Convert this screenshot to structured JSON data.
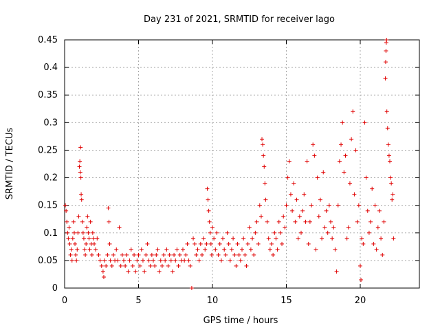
{
  "chart_data": {
    "type": "scatter",
    "title": "Day 231 of 2021, SRMTID for receiver lago",
    "xlabel": "GPS time / hours",
    "ylabel": "SRMTID / TECUs",
    "xlim": [
      0,
      24
    ],
    "ylim": [
      0,
      0.45
    ],
    "grid": true,
    "marker": "+",
    "series_color": "#e00000",
    "x_ticks": [
      0,
      5,
      10,
      15,
      20
    ],
    "x_tick_labels": [
      "0",
      "5",
      "10",
      "15",
      "20"
    ],
    "y_ticks": [
      0,
      0.05,
      0.1,
      0.15,
      0.2,
      0.25,
      0.3,
      0.35,
      0.4,
      0.45
    ],
    "y_tick_labels": [
      "0",
      "0.05",
      "0.1",
      "0.15",
      "0.2",
      "0.25",
      "0.3",
      "0.35",
      "0.4",
      "0.45"
    ],
    "points": [
      [
        0.05,
        0.15
      ],
      [
        0.1,
        0.14
      ],
      [
        0.15,
        0.12
      ],
      [
        0.2,
        0.1
      ],
      [
        0.25,
        0.09
      ],
      [
        0.3,
        0.11
      ],
      [
        0.35,
        0.08
      ],
      [
        0.4,
        0.06
      ],
      [
        0.45,
        0.07
      ],
      [
        0.5,
        0.05
      ],
      [
        0.55,
        0.09
      ],
      [
        0.6,
        0.12
      ],
      [
        0.65,
        0.1
      ],
      [
        0.7,
        0.08
      ],
      [
        0.75,
        0.06
      ],
      [
        0.8,
        0.05
      ],
      [
        0.85,
        0.07
      ],
      [
        0.9,
        0.1
      ],
      [
        0.95,
        0.13
      ],
      [
        1.0,
        0.22
      ],
      [
        1.03,
        0.23
      ],
      [
        1.06,
        0.21
      ],
      [
        1.08,
        0.255
      ],
      [
        1.1,
        0.2
      ],
      [
        1.12,
        0.17
      ],
      [
        1.15,
        0.16
      ],
      [
        1.2,
        0.12
      ],
      [
        1.25,
        0.1
      ],
      [
        1.3,
        0.09
      ],
      [
        1.35,
        0.07
      ],
      [
        1.4,
        0.06
      ],
      [
        1.45,
        0.08
      ],
      [
        1.5,
        0.11
      ],
      [
        1.55,
        0.13
      ],
      [
        1.6,
        0.1
      ],
      [
        1.65,
        0.09
      ],
      [
        1.7,
        0.07
      ],
      [
        1.75,
        0.12
      ],
      [
        1.8,
        0.08
      ],
      [
        1.85,
        0.06
      ],
      [
        1.9,
        0.1
      ],
      [
        1.95,
        0.09
      ],
      [
        2.0,
        0.08
      ],
      [
        2.1,
        0.07
      ],
      [
        2.2,
        0.09
      ],
      [
        2.3,
        0.06
      ],
      [
        2.4,
        0.05
      ],
      [
        2.5,
        0.04
      ],
      [
        2.6,
        0.03
      ],
      [
        2.65,
        0.02
      ],
      [
        2.7,
        0.05
      ],
      [
        2.8,
        0.04
      ],
      [
        2.9,
        0.06
      ],
      [
        2.95,
        0.145
      ],
      [
        3.0,
        0.12
      ],
      [
        3.05,
        0.08
      ],
      [
        3.1,
        0.05
      ],
      [
        3.2,
        0.04
      ],
      [
        3.3,
        0.06
      ],
      [
        3.4,
        0.05
      ],
      [
        3.5,
        0.07
      ],
      [
        3.6,
        0.05
      ],
      [
        3.7,
        0.11
      ],
      [
        3.8,
        0.04
      ],
      [
        3.9,
        0.06
      ],
      [
        4.0,
        0.05
      ],
      [
        4.1,
        0.04
      ],
      [
        4.2,
        0.06
      ],
      [
        4.3,
        0.03
      ],
      [
        4.4,
        0.05
      ],
      [
        4.5,
        0.07
      ],
      [
        4.6,
        0.04
      ],
      [
        4.7,
        0.06
      ],
      [
        4.8,
        0.03
      ],
      [
        4.9,
        0.05
      ],
      [
        5.0,
        0.06
      ],
      [
        5.1,
        0.04
      ],
      [
        5.2,
        0.07
      ],
      [
        5.3,
        0.05
      ],
      [
        5.4,
        0.03
      ],
      [
        5.5,
        0.06
      ],
      [
        5.6,
        0.08
      ],
      [
        5.7,
        0.05
      ],
      [
        5.8,
        0.04
      ],
      [
        5.9,
        0.06
      ],
      [
        6.0,
        0.05
      ],
      [
        6.1,
        0.04
      ],
      [
        6.2,
        0.06
      ],
      [
        6.3,
        0.07
      ],
      [
        6.4,
        0.03
      ],
      [
        6.5,
        0.05
      ],
      [
        6.6,
        0.04
      ],
      [
        6.7,
        0.06
      ],
      [
        6.8,
        0.05
      ],
      [
        6.9,
        0.07
      ],
      [
        7.0,
        0.04
      ],
      [
        7.1,
        0.06
      ],
      [
        7.2,
        0.05
      ],
      [
        7.3,
        0.03
      ],
      [
        7.4,
        0.06
      ],
      [
        7.5,
        0.05
      ],
      [
        7.6,
        0.07
      ],
      [
        7.7,
        0.04
      ],
      [
        7.8,
        0.06
      ],
      [
        7.9,
        0.05
      ],
      [
        8.0,
        0.07
      ],
      [
        8.1,
        0.05
      ],
      [
        8.2,
        0.06
      ],
      [
        8.3,
        0.08
      ],
      [
        8.4,
        0.05
      ],
      [
        8.5,
        0.04
      ],
      [
        8.6,
        0.0
      ],
      [
        8.7,
        0.09
      ],
      [
        8.8,
        0.08
      ],
      [
        8.9,
        0.06
      ],
      [
        9.0,
        0.07
      ],
      [
        9.1,
        0.05
      ],
      [
        9.2,
        0.08
      ],
      [
        9.3,
        0.06
      ],
      [
        9.4,
        0.09
      ],
      [
        9.5,
        0.07
      ],
      [
        9.6,
        0.08
      ],
      [
        9.65,
        0.18
      ],
      [
        9.7,
        0.16
      ],
      [
        9.75,
        0.14
      ],
      [
        9.8,
        0.12
      ],
      [
        9.85,
        0.1
      ],
      [
        9.9,
        0.08
      ],
      [
        9.95,
        0.06
      ],
      [
        10.0,
        0.11
      ],
      [
        10.1,
        0.09
      ],
      [
        10.2,
        0.07
      ],
      [
        10.3,
        0.1
      ],
      [
        10.4,
        0.06
      ],
      [
        10.5,
        0.08
      ],
      [
        10.6,
        0.05
      ],
      [
        10.7,
        0.09
      ],
      [
        10.8,
        0.07
      ],
      [
        10.9,
        0.06
      ],
      [
        11.0,
        0.1
      ],
      [
        11.1,
        0.08
      ],
      [
        11.2,
        0.05
      ],
      [
        11.3,
        0.07
      ],
      [
        11.4,
        0.09
      ],
      [
        11.5,
        0.06
      ],
      [
        11.6,
        0.04
      ],
      [
        11.7,
        0.08
      ],
      [
        11.8,
        0.06
      ],
      [
        11.9,
        0.05
      ],
      [
        12.0,
        0.07
      ],
      [
        12.1,
        0.09
      ],
      [
        12.2,
        0.06
      ],
      [
        12.3,
        0.04
      ],
      [
        12.4,
        0.08
      ],
      [
        12.5,
        0.11
      ],
      [
        12.6,
        0.07
      ],
      [
        12.7,
        0.09
      ],
      [
        12.8,
        0.06
      ],
      [
        12.9,
        0.1
      ],
      [
        13.0,
        0.12
      ],
      [
        13.1,
        0.08
      ],
      [
        13.2,
        0.15
      ],
      [
        13.3,
        0.13
      ],
      [
        13.35,
        0.27
      ],
      [
        13.4,
        0.26
      ],
      [
        13.45,
        0.24
      ],
      [
        13.5,
        0.22
      ],
      [
        13.55,
        0.19
      ],
      [
        13.6,
        0.16
      ],
      [
        13.7,
        0.12
      ],
      [
        13.8,
        0.09
      ],
      [
        13.9,
        0.07
      ],
      [
        14.0,
        0.08
      ],
      [
        14.1,
        0.06
      ],
      [
        14.2,
        0.1
      ],
      [
        14.3,
        0.09
      ],
      [
        14.4,
        0.07
      ],
      [
        14.5,
        0.12
      ],
      [
        14.6,
        0.1
      ],
      [
        14.7,
        0.08
      ],
      [
        14.8,
        0.13
      ],
      [
        14.9,
        0.11
      ],
      [
        15.0,
        0.15
      ],
      [
        15.1,
        0.2
      ],
      [
        15.2,
        0.23
      ],
      [
        15.3,
        0.17
      ],
      [
        15.4,
        0.14
      ],
      [
        15.5,
        0.19
      ],
      [
        15.6,
        0.12
      ],
      [
        15.7,
        0.16
      ],
      [
        15.8,
        0.09
      ],
      [
        15.9,
        0.13
      ],
      [
        16.0,
        0.1
      ],
      [
        16.1,
        0.14
      ],
      [
        16.2,
        0.17
      ],
      [
        16.3,
        0.12
      ],
      [
        16.4,
        0.23
      ],
      [
        16.5,
        0.08
      ],
      [
        16.6,
        0.12
      ],
      [
        16.7,
        0.15
      ],
      [
        16.8,
        0.26
      ],
      [
        16.9,
        0.24
      ],
      [
        17.0,
        0.07
      ],
      [
        17.1,
        0.2
      ],
      [
        17.2,
        0.13
      ],
      [
        17.3,
        0.16
      ],
      [
        17.4,
        0.09
      ],
      [
        17.5,
        0.21
      ],
      [
        17.6,
        0.11
      ],
      [
        17.7,
        0.14
      ],
      [
        17.8,
        0.1
      ],
      [
        17.9,
        0.15
      ],
      [
        18.0,
        0.12
      ],
      [
        18.1,
        0.09
      ],
      [
        18.2,
        0.11
      ],
      [
        18.3,
        0.07
      ],
      [
        18.4,
        0.03
      ],
      [
        18.5,
        0.15
      ],
      [
        18.6,
        0.23
      ],
      [
        18.7,
        0.26
      ],
      [
        18.8,
        0.3
      ],
      [
        18.9,
        0.21
      ],
      [
        19.0,
        0.24
      ],
      [
        19.1,
        0.09
      ],
      [
        19.2,
        0.11
      ],
      [
        19.3,
        0.19
      ],
      [
        19.4,
        0.27
      ],
      [
        19.5,
        0.32
      ],
      [
        19.6,
        0.17
      ],
      [
        19.7,
        0.25
      ],
      [
        19.8,
        0.12
      ],
      [
        19.9,
        0.15
      ],
      [
        20.0,
        0.04
      ],
      [
        20.05,
        0.015
      ],
      [
        20.1,
        0.09
      ],
      [
        20.2,
        0.08
      ],
      [
        20.3,
        0.3
      ],
      [
        20.4,
        0.2
      ],
      [
        20.5,
        0.14
      ],
      [
        20.6,
        0.1
      ],
      [
        20.7,
        0.12
      ],
      [
        20.8,
        0.18
      ],
      [
        20.9,
        0.08
      ],
      [
        21.0,
        0.15
      ],
      [
        21.1,
        0.07
      ],
      [
        21.2,
        0.11
      ],
      [
        21.3,
        0.14
      ],
      [
        21.4,
        0.09
      ],
      [
        21.5,
        0.06
      ],
      [
        21.6,
        0.12
      ],
      [
        21.7,
        0.38
      ],
      [
        21.72,
        0.41
      ],
      [
        21.74,
        0.43
      ],
      [
        21.76,
        0.445
      ],
      [
        21.78,
        0.45
      ],
      [
        21.8,
        0.32
      ],
      [
        21.85,
        0.29
      ],
      [
        21.9,
        0.26
      ],
      [
        21.95,
        0.24
      ],
      [
        22.0,
        0.23
      ],
      [
        22.05,
        0.2
      ],
      [
        22.1,
        0.19
      ],
      [
        22.15,
        0.16
      ],
      [
        22.2,
        0.17
      ],
      [
        22.25,
        0.09
      ]
    ]
  }
}
